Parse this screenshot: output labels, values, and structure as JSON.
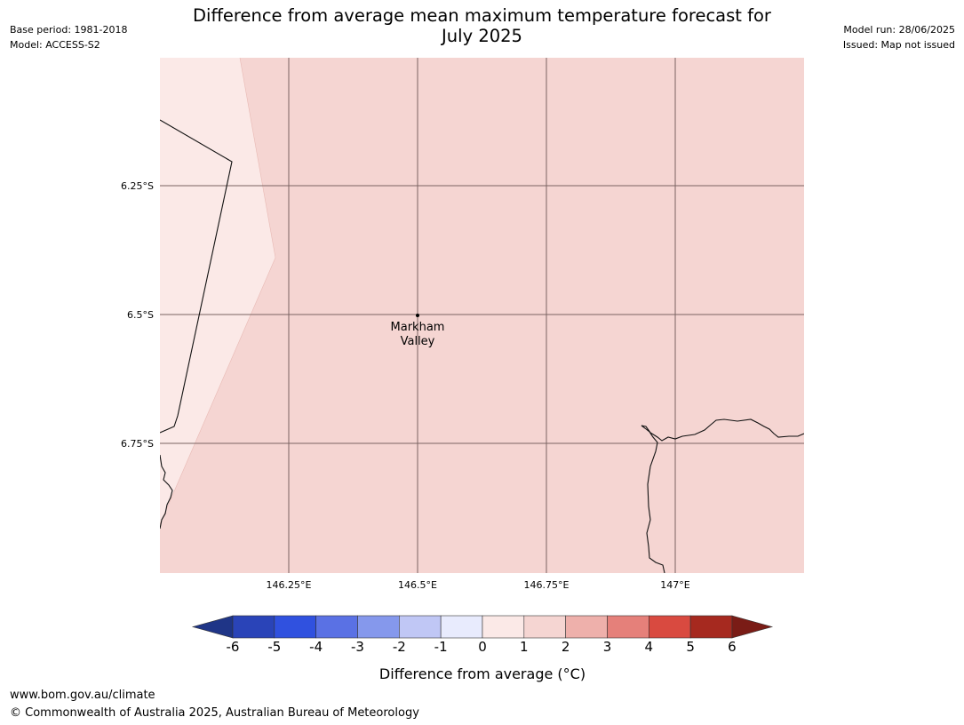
{
  "title_line1": "Difference from average mean maximum temperature forecast for",
  "title_line2": "July 2025",
  "meta_left": [
    "Base period: 1981-2018",
    "Model: ACCESS-S2"
  ],
  "meta_right": [
    "Model run: 28/06/2025",
    "Issued: Map not issued"
  ],
  "map": {
    "lat_ticks": [
      "6.25°S",
      "6.5°S",
      "6.75°S"
    ],
    "lon_ticks": [
      "146.25°E",
      "146.5°E",
      "146.75°E",
      "147°E"
    ],
    "place": {
      "name_line1": "Markham",
      "name_line2": "Valley",
      "lon": 146.5,
      "lat": -6.5
    },
    "fill_colors": {
      "band_0_1": "#fbe9e7",
      "band_1_2": "#f5d5d2"
    }
  },
  "colorbar": {
    "label": "Difference from average (°C)",
    "ticks": [
      "-6",
      "-5",
      "-4",
      "-3",
      "-2",
      "-1",
      "0",
      "1",
      "2",
      "3",
      "4",
      "5",
      "6"
    ],
    "colors": [
      "#1f3587",
      "#2a44b8",
      "#3051df",
      "#5a71e4",
      "#8598ec",
      "#c0c7f5",
      "#e8ebfd",
      "#fbe9e7",
      "#f5d5d2",
      "#eeb0ab",
      "#e5807a",
      "#d94a40",
      "#a6291f",
      "#7a1c16"
    ]
  },
  "footer": {
    "url": "www.bom.gov.au/climate",
    "copyright": "© Commonwealth of Australia 2025, Australian Bureau of Meteorology"
  }
}
